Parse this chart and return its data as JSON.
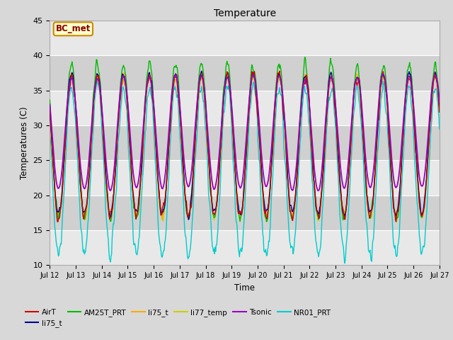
{
  "title": "Temperature",
  "xlabel": "Time",
  "ylabel": "Temperatures (C)",
  "ylim": [
    10,
    45
  ],
  "bg_color": "#d8d8d8",
  "plot_bg": "#d8d8d8",
  "annotation_label": "BC_met",
  "annotation_bg": "#ffffcc",
  "annotation_border": "#cc8800",
  "annotation_text_color": "#880000",
  "legend_items": [
    {
      "label": "AirT",
      "color": "#cc0000"
    },
    {
      "label": "li75_t",
      "color": "#000099"
    },
    {
      "label": "AM25T_PRT",
      "color": "#00bb00"
    },
    {
      "label": "li75_t",
      "color": "#ffaa00"
    },
    {
      "label": "li77_temp",
      "color": "#cccc00"
    },
    {
      "label": "Tsonic",
      "color": "#9900bb"
    },
    {
      "label": "NR01_PRT",
      "color": "#00cccc"
    }
  ],
  "xtick_labels": [
    "Jul 12",
    "Jul 13",
    "Jul 14",
    "Jul 15",
    "Jul 16",
    "Jul 17",
    "Jul 18",
    "Jul 19",
    "Jul 20",
    "Jul 21",
    "Jul 22",
    "Jul 23",
    "Jul 24",
    "Jul 25",
    "Jul 26",
    "Jul 27"
  ],
  "ytick_values": [
    10,
    15,
    20,
    25,
    30,
    35,
    40,
    45
  ],
  "n_days": 15,
  "band_color_light": "#e8e8e8",
  "band_color_dark": "#d0d0d0"
}
